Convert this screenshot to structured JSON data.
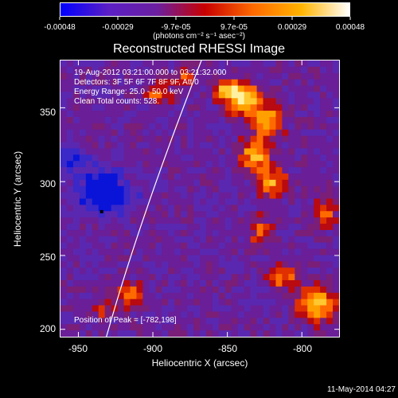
{
  "colorbar": {
    "ticks": [
      "-0.00048",
      "-0.00029",
      "-9.7e-05",
      "9.7e-05",
      "0.00029",
      "0.00048"
    ],
    "unit": "(photons cm⁻² s⁻¹ asec⁻²)",
    "colors": [
      "#0000ff",
      "#5b1fc4",
      "#6b1fa0",
      "#c80000",
      "#ff6a00",
      "#ffb400",
      "#ffffff"
    ]
  },
  "title": "Reconstructed RHESSI Image",
  "annotations": {
    "time": "19-Aug-2012 03:21:00.000 to 03:21:32.000",
    "detectors": "Detectors: 3F 5F 6F 7F 8F 9F, Att 0",
    "energy": "Energy Range: 25.0 - 50.0 keV",
    "clean": "Clean     Total counts: 528.",
    "peak": "Position of Peak = [-782,198]"
  },
  "axes": {
    "xlabel": "Heliocentric X (arcsec)",
    "ylabel": "Heliocentric Y (arcsec)",
    "xticks": [
      "-950",
      "-900",
      "-850",
      "-800"
    ],
    "yticks": [
      "350",
      "300",
      "250",
      "200"
    ],
    "xlim": [
      -962,
      -775
    ],
    "ylim": [
      195,
      382
    ]
  },
  "footer": "11-May-2014 04:27"
}
